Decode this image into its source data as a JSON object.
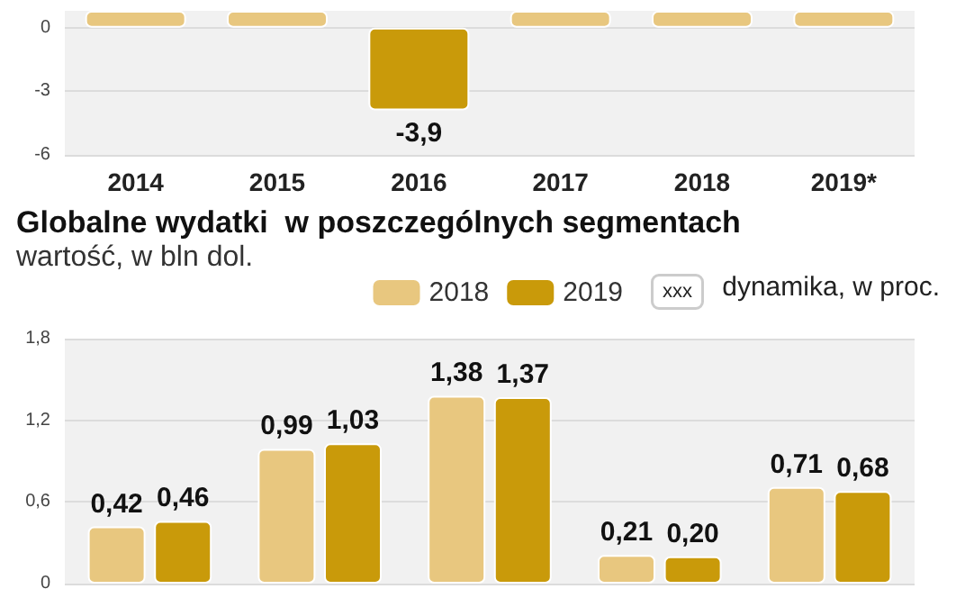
{
  "chart_data": [
    {
      "type": "bar",
      "categories": [
        "2014",
        "2015",
        "2016",
        "2017",
        "2018",
        "2019*"
      ],
      "values": [
        0.8,
        0.8,
        -3.9,
        0.8,
        0.8,
        0.8
      ],
      "colors": [
        "#e8c77f",
        "#e8c77f",
        "#c99a0a",
        "#e8c77f",
        "#e8c77f",
        "#e8c77f"
      ],
      "value_labels": [
        null,
        null,
        "-3,9",
        null,
        null,
        null
      ],
      "ylim": [
        -6,
        0.8
      ],
      "yticks": [
        -6,
        -3,
        0
      ],
      "grid": "y"
    },
    {
      "type": "bar",
      "title": "Globalne wydatki  w poszczególnych segmentach",
      "subtitle": "wartość, w bln dol.",
      "categories": [
        null,
        null,
        null,
        null,
        null
      ],
      "series": [
        {
          "name": "2018",
          "color": "#e8c77f",
          "values": [
            0.42,
            0.99,
            1.38,
            0.21,
            0.71
          ],
          "value_labels": [
            "0,42",
            "0,99",
            "1,38",
            "0,21",
            "0,71"
          ]
        },
        {
          "name": "2019",
          "color": "#c99a0a",
          "values": [
            0.46,
            1.03,
            1.37,
            0.2,
            0.68
          ],
          "value_labels": [
            "0,46",
            "1,03",
            "1,37",
            "0,20",
            "0,68"
          ]
        }
      ],
      "ylim": [
        0,
        1.8
      ],
      "yticks": [
        0,
        {
          "value": 0.6,
          "label": "0,6"
        },
        {
          "value": 1.2,
          "label": "1,2"
        },
        {
          "value": 1.8,
          "label": "1,8"
        }
      ],
      "grid": "y",
      "legend": "top right",
      "annotations": [
        "xxx",
        "dynamika, w proc."
      ]
    }
  ]
}
